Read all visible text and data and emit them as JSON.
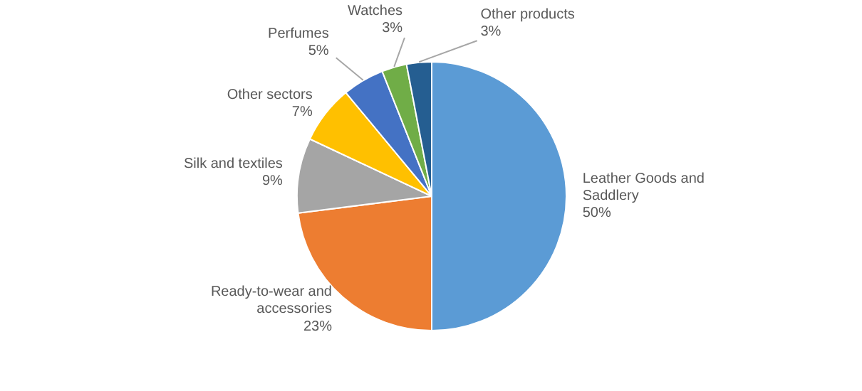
{
  "chart_data": {
    "type": "pie",
    "categories": [
      "Leather Goods and Saddlery",
      "Ready-to-wear and accessories",
      "Silk and textiles",
      "Other sectors",
      "Perfumes",
      "Watches",
      "Other products"
    ],
    "values": [
      50,
      23,
      9,
      7,
      5,
      3,
      3
    ],
    "colors": [
      "#5b9bd5",
      "#ed7d31",
      "#a5a5a5",
      "#ffc000",
      "#4472c4",
      "#70ad47",
      "#255e91"
    ],
    "value_labels": [
      "50%",
      "23%",
      "9%",
      "7%",
      "5%",
      "3%",
      "3%"
    ]
  }
}
